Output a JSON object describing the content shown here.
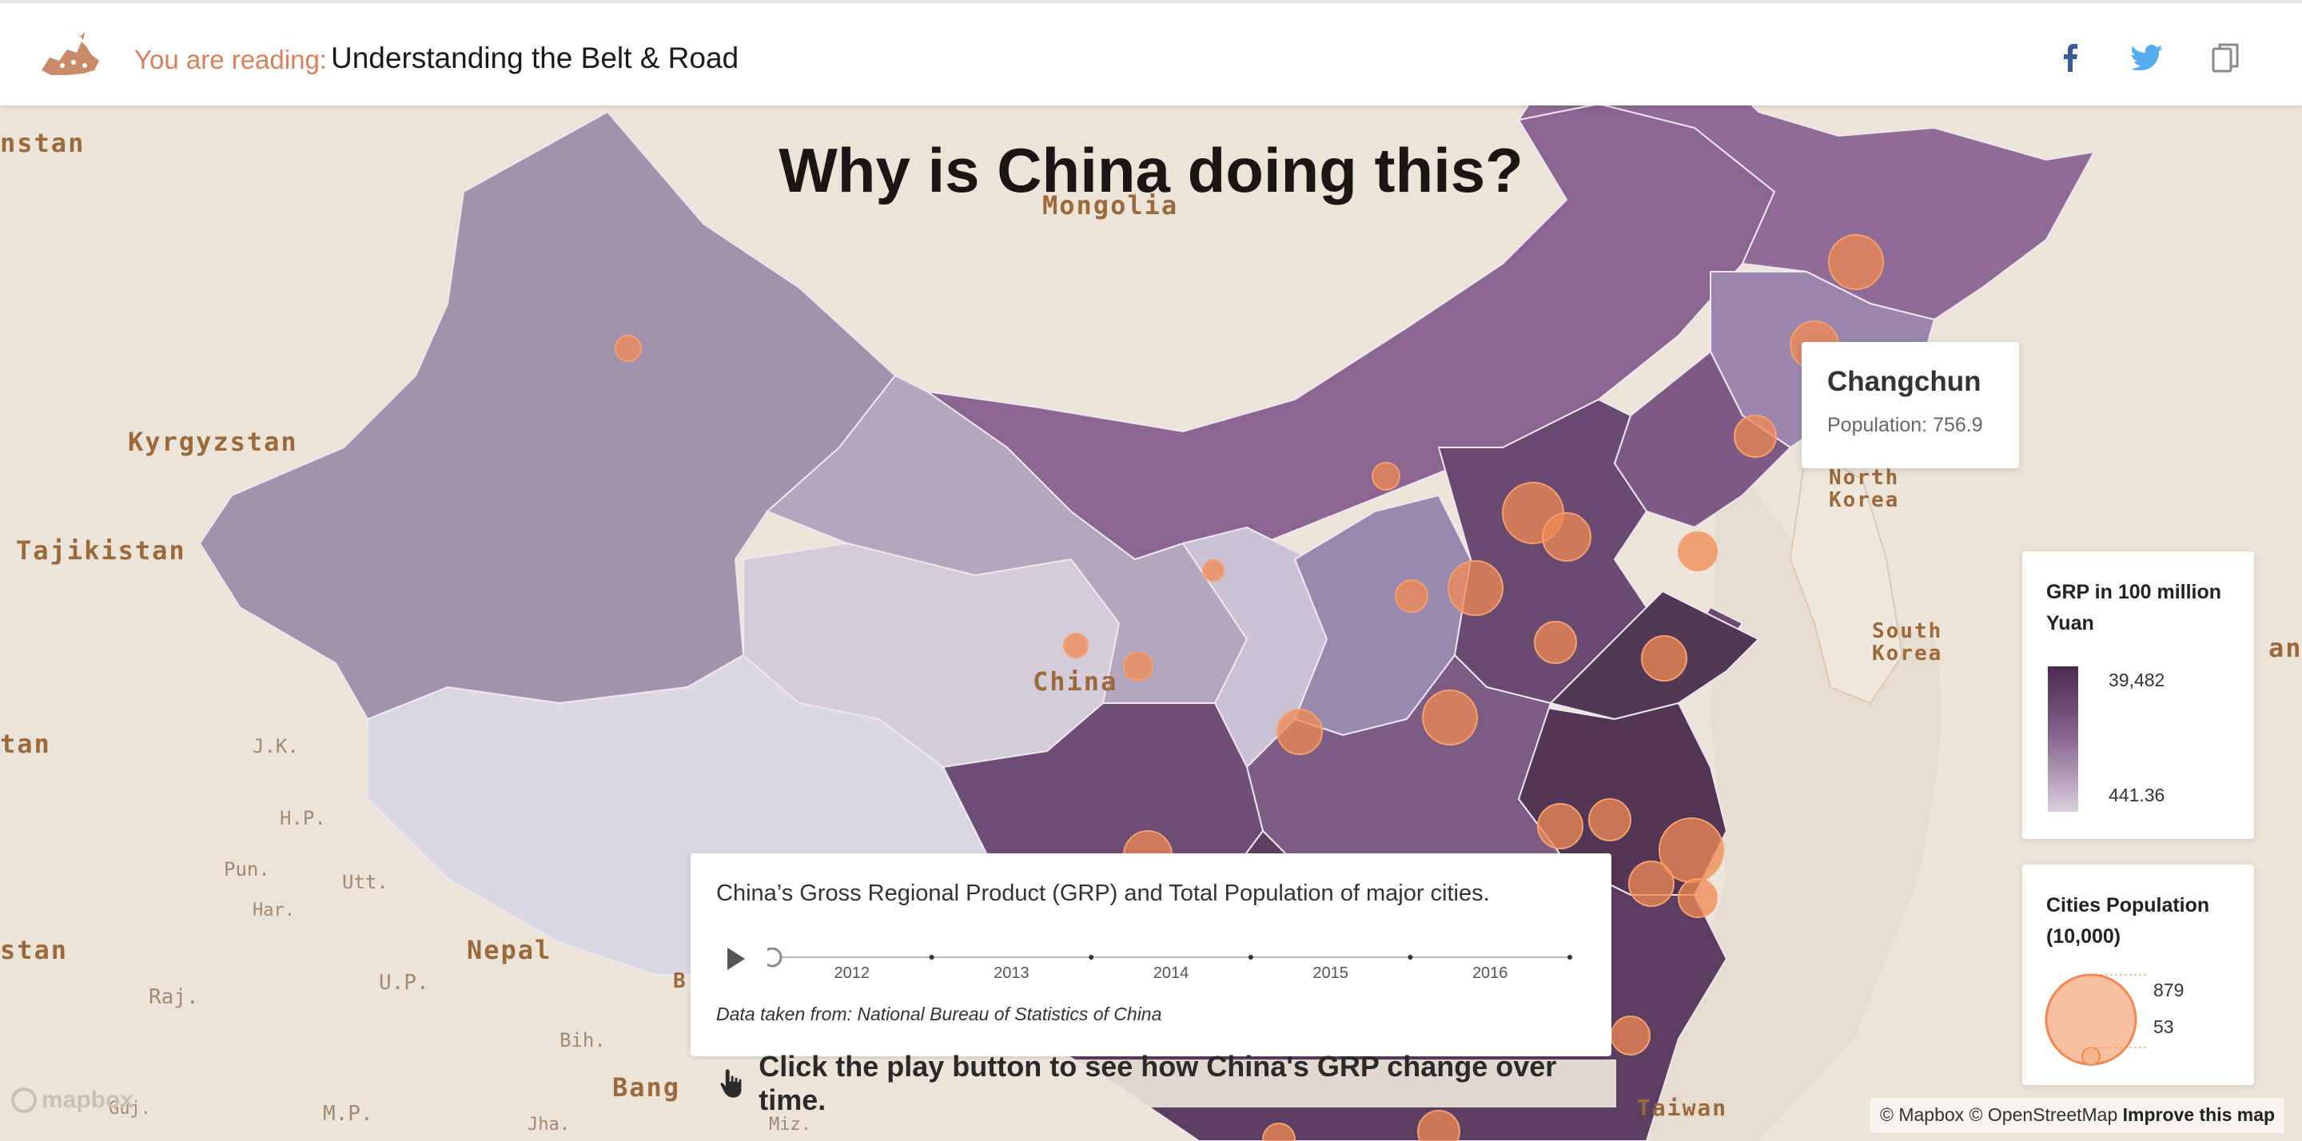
{
  "header": {
    "reading_label": "You are reading:",
    "title": "Understanding the Belt & Road",
    "icons": [
      "facebook-icon",
      "twitter-icon",
      "copy-icon"
    ]
  },
  "main": {
    "title": "Why is China doing this?"
  },
  "map": {
    "country_labels": {
      "mongolia": "Mongolia",
      "kyrgyzstan": "Kyrgyzstan",
      "tajikistan": "Tajikistan",
      "china": "China",
      "nepal": "Nepal",
      "north_korea_1": "North",
      "north_korea_2": "Korea",
      "south_korea_1": "South",
      "south_korea_2": "Korea",
      "taiwan": "Taiwan",
      "bangladesh_partial": "Bang",
      "edge_stan_top": "nstan",
      "edge_tan": "tan",
      "edge_stan_bottom": "stan",
      "edge_an_right": "an",
      "b_partial": "B"
    },
    "place_labels": {
      "jk": "J.K.",
      "hp": "H.P.",
      "pun": "Pun.",
      "har": "Har.",
      "utt": "Utt.",
      "up": "U.P.",
      "raj": "Raj.",
      "bih": "Bih.",
      "mp": "M.P.",
      "jha": "Jha.",
      "miz": "Miz.",
      "guj": "Guj."
    },
    "colors": {
      "land": "#ece4d8",
      "province_dark": "#5e3f62",
      "province_mid": "#8a6890",
      "province_light": "#d8d2dc",
      "city_circle": "#f08a52"
    }
  },
  "tooltip": {
    "city": "Changchun",
    "population": "Population: 756.9"
  },
  "legend_grp": {
    "title": "GRP in 100 million Yuan",
    "max": "39,482",
    "min": "441.36"
  },
  "legend_population": {
    "title": "Cities Population (10,000)",
    "max": "879",
    "min": "53"
  },
  "timeline": {
    "caption": "China’s Gross Regional Product (GRP) and Total Population of major cities.",
    "years": [
      "2012",
      "2013",
      "2014",
      "2015",
      "2016"
    ],
    "current_position": 0,
    "source": "Data taken from: National Bureau of Statistics of China"
  },
  "hint": {
    "text": "Click the play button to see how China's GRP change over time."
  },
  "footer": {
    "mapbox_logo": "mapbox",
    "attribution": "© Mapbox © OpenStreetMap",
    "improve_link": "Improve this map"
  }
}
